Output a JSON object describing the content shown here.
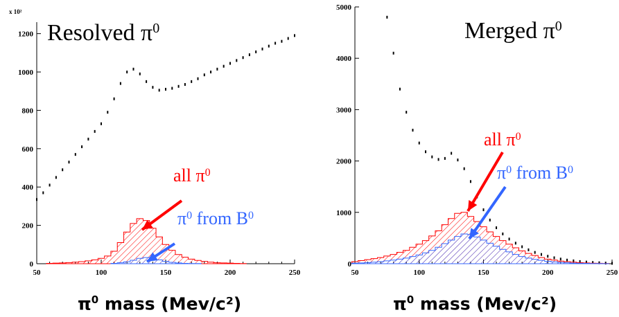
{
  "chart_data": [
    {
      "type": "histogram",
      "title": "Resolved π⁰",
      "title_main": "Resolved π",
      "title_sup": "0",
      "xlabel_main": "π",
      "xlabel_sup": "0",
      "xlabel_rest": " mass (Mev/c²)",
      "xlim": [
        50,
        250
      ],
      "ylim": [
        0,
        1260
      ],
      "x_ticks": [
        "50",
        "100",
        "150",
        "200",
        "250"
      ],
      "x_tick_values": [
        50,
        100,
        150,
        200,
        250
      ],
      "y_ticks": [
        "0",
        "200",
        "400",
        "600",
        "800",
        "1000",
        "1200"
      ],
      "y_tick_values": [
        0,
        200,
        400,
        600,
        800,
        1000,
        1200
      ],
      "y_scale_label": "x 10²",
      "annotations": [
        {
          "text": "all π",
          "sup": "0",
          "color": "#ff0000"
        },
        {
          "text": "π",
          "sup": "0",
          "text2": " from B",
          "sup2": "0",
          "color": "#3366ff"
        }
      ],
      "series": [
        {
          "kind": "points",
          "color": "#000000",
          "x": [
            50,
            55,
            60,
            65,
            70,
            75,
            80,
            85,
            90,
            95,
            100,
            105,
            110,
            115,
            120,
            125,
            130,
            135,
            140,
            145,
            150,
            155,
            160,
            165,
            170,
            175,
            180,
            185,
            190,
            195,
            200,
            205,
            210,
            215,
            220,
            225,
            230,
            235,
            240,
            245,
            250
          ],
          "values": [
            335,
            370,
            410,
            450,
            490,
            530,
            570,
            610,
            650,
            690,
            730,
            790,
            860,
            940,
            1000,
            1015,
            990,
            950,
            920,
            905,
            910,
            915,
            925,
            935,
            950,
            965,
            985,
            1000,
            1015,
            1030,
            1045,
            1060,
            1075,
            1090,
            1105,
            1120,
            1135,
            1150,
            1160,
            1175,
            1190
          ]
        },
        {
          "kind": "hatched",
          "color": "#ff0000",
          "x": [
            60,
            65,
            70,
            75,
            80,
            85,
            90,
            95,
            100,
            105,
            110,
            115,
            120,
            125,
            130,
            135,
            140,
            145,
            150,
            155,
            160,
            165,
            170,
            175,
            180,
            185,
            190,
            195,
            200,
            205,
            210
          ],
          "values": [
            2,
            3,
            4,
            6,
            8,
            11,
            15,
            20,
            28,
            40,
            65,
            110,
            165,
            210,
            235,
            225,
            185,
            140,
            100,
            70,
            48,
            34,
            24,
            17,
            12,
            8,
            5,
            4,
            3,
            2,
            1
          ]
        },
        {
          "kind": "hatched",
          "color": "#3366ff",
          "x": [
            110,
            115,
            120,
            125,
            130,
            135,
            140,
            145,
            150,
            155,
            160,
            165,
            170,
            175
          ],
          "values": [
            2,
            5,
            10,
            18,
            28,
            32,
            28,
            20,
            12,
            7,
            4,
            2,
            1,
            1
          ]
        }
      ]
    },
    {
      "type": "histogram",
      "title": "Merged π⁰",
      "title_main": "Merged π",
      "title_sup": "0",
      "xlabel_main": "π",
      "xlabel_sup": "0",
      "xlabel_rest": " mass (Mev/c²)",
      "xlim": [
        50,
        250
      ],
      "ylim": [
        0,
        5000
      ],
      "x_ticks": [
        "50",
        "100",
        "150",
        "200",
        "250"
      ],
      "x_tick_values": [
        50,
        100,
        150,
        200,
        250
      ],
      "y_ticks": [
        "0",
        "1000",
        "2000",
        "3000",
        "4000",
        "5000"
      ],
      "y_tick_values": [
        0,
        1000,
        2000,
        3000,
        4000,
        5000
      ],
      "annotations": [
        {
          "text": "all π",
          "sup": "0",
          "color": "#ff0000"
        },
        {
          "text": "π",
          "sup": "0",
          "text2": " from B",
          "sup2": "0",
          "color": "#3366ff"
        }
      ],
      "series": [
        {
          "kind": "points",
          "color": "#000000",
          "x": [
            75,
            80,
            85,
            90,
            95,
            100,
            105,
            110,
            115,
            120,
            125,
            130,
            135,
            140,
            145,
            150,
            155,
            160,
            165,
            170,
            175,
            180,
            185,
            190,
            195,
            200,
            205,
            210,
            215,
            220,
            225,
            230,
            235,
            240,
            245,
            250
          ],
          "values": [
            4800,
            4100,
            3400,
            2950,
            2600,
            2350,
            2180,
            2080,
            2030,
            2050,
            2150,
            2020,
            1850,
            1600,
            1300,
            1050,
            850,
            700,
            580,
            480,
            400,
            330,
            270,
            220,
            180,
            145,
            115,
            90,
            70,
            55,
            42,
            32,
            24,
            18,
            12,
            8
          ]
        },
        {
          "kind": "hatched",
          "color": "#ff0000",
          "x": [
            50,
            55,
            60,
            65,
            70,
            75,
            80,
            85,
            90,
            95,
            100,
            105,
            110,
            115,
            120,
            125,
            130,
            135,
            140,
            145,
            150,
            155,
            160,
            165,
            170,
            175,
            180,
            185,
            190,
            195,
            200,
            205,
            210,
            215,
            220,
            225,
            230,
            235,
            240,
            245
          ],
          "values": [
            40,
            60,
            80,
            100,
            120,
            150,
            180,
            220,
            260,
            320,
            380,
            450,
            540,
            640,
            760,
            880,
            980,
            1000,
            920,
            820,
            720,
            620,
            530,
            450,
            380,
            310,
            250,
            200,
            160,
            120,
            90,
            70,
            50,
            40,
            30,
            20,
            15,
            10,
            8,
            5
          ]
        },
        {
          "kind": "hatched",
          "color": "#3366ff",
          "x": [
            50,
            55,
            60,
            65,
            70,
            75,
            80,
            85,
            90,
            95,
            100,
            105,
            110,
            115,
            120,
            125,
            130,
            135,
            140,
            145,
            150,
            155,
            160,
            165,
            170,
            175,
            180,
            185,
            190,
            195,
            200,
            205,
            210,
            215,
            220,
            225,
            230,
            235,
            240,
            245
          ],
          "values": [
            10,
            15,
            20,
            30,
            40,
            55,
            70,
            90,
            110,
            140,
            170,
            210,
            260,
            320,
            390,
            460,
            530,
            580,
            570,
            520,
            460,
            400,
            340,
            280,
            230,
            180,
            140,
            110,
            85,
            65,
            48,
            36,
            26,
            18,
            12,
            8,
            6,
            4,
            3,
            2
          ]
        }
      ]
    }
  ]
}
